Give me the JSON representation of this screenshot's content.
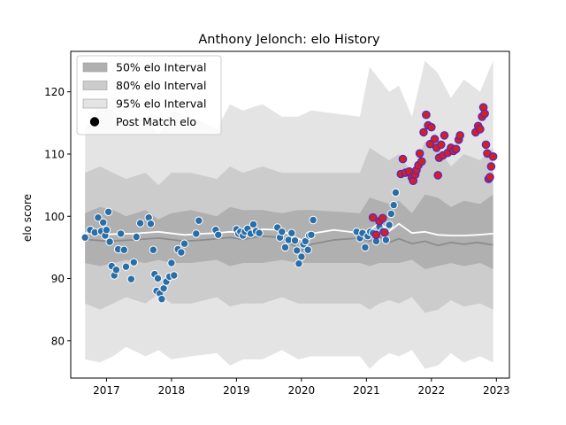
{
  "chart_data": {
    "type": "scatter",
    "title": "Anthony Jelonch: elo History",
    "xlabel": "",
    "ylabel": "elo score",
    "xlim": [
      2016.45,
      2023.2
    ],
    "ylim": [
      74,
      126.5
    ],
    "x_ticks": [
      2017,
      2018,
      2019,
      2020,
      2021,
      2022,
      2023
    ],
    "x_tick_labels": [
      "2017",
      "2018",
      "2019",
      "2020",
      "2021",
      "2022",
      "2023"
    ],
    "y_ticks": [
      80,
      90,
      100,
      110,
      120
    ],
    "y_tick_labels": [
      "80",
      "90",
      "100",
      "110",
      "120"
    ],
    "legend_placement": "top-left",
    "legend": [
      {
        "label": "50% elo Interval",
        "kind": "band",
        "color": "#b0b0b0"
      },
      {
        "label": "80% elo Interval",
        "kind": "band",
        "color": "#cccccc"
      },
      {
        "label": "95% elo Interval",
        "kind": "band",
        "color": "#e4e4e4"
      },
      {
        "label": "Post Match elo",
        "kind": "marker",
        "color": "#000000"
      }
    ],
    "colors": {
      "band95": "#e4e4e4",
      "band80": "#cccccc",
      "band50": "#b0b0b0",
      "median_line": "#8c8c8c",
      "mean_line": "#ffffff",
      "point_blue": "#2a6ea8",
      "point_red": "#d62020",
      "point_red_edge": "#4b28c8"
    },
    "bands": {
      "x": [
        2016.67,
        2016.9,
        2017.1,
        2017.3,
        2017.6,
        2017.8,
        2018.0,
        2018.3,
        2018.7,
        2018.9,
        2019.1,
        2019.4,
        2019.7,
        2019.95,
        2020.15,
        2020.9,
        2021.05,
        2021.2,
        2021.35,
        2021.5,
        2021.7,
        2021.9,
        2022.1,
        2022.3,
        2022.5,
        2022.75,
        2022.95
      ],
      "p95_hi": [
        114,
        118,
        117,
        115,
        116,
        113,
        117,
        116,
        114,
        118,
        117,
        118,
        116,
        116,
        117,
        116,
        124,
        122,
        120,
        121,
        116,
        125,
        123,
        119,
        122,
        120,
        125
      ],
      "p80_hi": [
        107,
        108,
        107,
        106,
        107,
        105,
        107,
        107,
        106,
        108,
        107,
        108,
        107,
        107,
        107,
        107,
        111,
        110,
        109,
        110,
        107,
        112,
        111,
        108,
        110,
        109,
        111
      ],
      "p50_hi": [
        100.5,
        101.5,
        101,
        100,
        101,
        99.5,
        100.5,
        101,
        100,
        101.5,
        101,
        101,
        100.5,
        101,
        101,
        100.5,
        103,
        102.5,
        102,
        102.5,
        100.5,
        103.5,
        103,
        101.5,
        102.5,
        102,
        103.5
      ],
      "p50_lo": [
        92.5,
        92,
        92.5,
        93,
        92.5,
        93,
        92.5,
        92.5,
        93,
        92,
        92.5,
        92.5,
        93,
        92.5,
        92.5,
        92.5,
        92,
        92.5,
        92.5,
        92.5,
        93,
        91.5,
        92,
        92.5,
        92,
        92.5,
        91.5
      ],
      "p80_lo": [
        86,
        85,
        86,
        87,
        86,
        87.5,
        86,
        86,
        87,
        85.5,
        86,
        86,
        87,
        86,
        86,
        86,
        85,
        86,
        86.5,
        86,
        87,
        84.5,
        85,
        86.5,
        85.5,
        86,
        85
      ],
      "p95_lo": [
        77,
        76.5,
        77.5,
        79,
        77.5,
        78.5,
        77,
        77.5,
        78,
        76,
        77,
        77,
        78.5,
        77,
        77.5,
        77.5,
        75.5,
        77,
        78,
        77.5,
        78.5,
        75.5,
        76,
        78,
        76.5,
        77.5,
        76.5
      ]
    },
    "median_line": {
      "x": [
        2016.67,
        2017.0,
        2017.4,
        2017.8,
        2018.2,
        2018.5,
        2018.7,
        2018.9,
        2019.1,
        2019.4,
        2019.7,
        2019.85,
        2020.0,
        2020.15,
        2020.5,
        2020.9,
        2021.05,
        2021.2,
        2021.35,
        2021.5,
        2021.7,
        2021.9,
        2022.1,
        2022.3,
        2022.5,
        2022.7,
        2022.95
      ],
      "y": [
        96.3,
        96.0,
        96.2,
        96.5,
        96.0,
        96.2,
        96.4,
        96.6,
        96.3,
        96.8,
        96.6,
        95.5,
        94.5,
        95.5,
        96.2,
        96.5,
        96.0,
        96.7,
        95.8,
        96.4,
        95.6,
        96.0,
        95.3,
        95.8,
        95.5,
        95.8,
        95.4
      ]
    },
    "mean_line": {
      "x": [
        2016.67,
        2017.0,
        2017.4,
        2017.8,
        2018.2,
        2018.5,
        2018.7,
        2018.9,
        2019.1,
        2019.4,
        2019.7,
        2019.85,
        2020.0,
        2020.15,
        2020.5,
        2020.9,
        2021.05,
        2021.2,
        2021.35,
        2021.5,
        2021.7,
        2021.9,
        2022.1,
        2022.3,
        2022.5,
        2022.7,
        2022.95
      ],
      "y": [
        97.3,
        97.1,
        97.2,
        97.5,
        97.0,
        97.2,
        97.3,
        97.5,
        97.4,
        97.9,
        97.8,
        96.8,
        96.2,
        97.2,
        97.8,
        97.3,
        97.7,
        99.0,
        97.6,
        98.8,
        97.3,
        97.5,
        97.0,
        96.9,
        96.9,
        97.0,
        97.2
      ]
    },
    "series": [
      {
        "name": "Post Match elo",
        "points_blue": [
          [
            2016.67,
            96.6
          ],
          [
            2016.75,
            97.8
          ],
          [
            2016.82,
            97.4
          ],
          [
            2016.87,
            99.8
          ],
          [
            2016.92,
            97.6
          ],
          [
            2016.95,
            99.0
          ],
          [
            2016.98,
            96.9
          ],
          [
            2017.0,
            97.8
          ],
          [
            2017.03,
            100.7
          ],
          [
            2017.05,
            95.9
          ],
          [
            2017.08,
            92.0
          ],
          [
            2017.12,
            90.5
          ],
          [
            2017.15,
            91.4
          ],
          [
            2017.18,
            94.7
          ],
          [
            2017.22,
            97.2
          ],
          [
            2017.27,
            94.6
          ],
          [
            2017.3,
            91.9
          ],
          [
            2017.38,
            89.9
          ],
          [
            2017.42,
            92.6
          ],
          [
            2017.46,
            96.7
          ],
          [
            2017.52,
            98.9
          ],
          [
            2017.65,
            99.8
          ],
          [
            2017.68,
            98.8
          ],
          [
            2017.72,
            94.6
          ],
          [
            2017.74,
            90.7
          ],
          [
            2017.77,
            88.0
          ],
          [
            2017.79,
            90.0
          ],
          [
            2017.82,
            87.6
          ],
          [
            2017.85,
            86.7
          ],
          [
            2017.88,
            88.4
          ],
          [
            2017.92,
            89.5
          ],
          [
            2017.97,
            90.3
          ],
          [
            2018.0,
            92.5
          ],
          [
            2018.04,
            90.5
          ],
          [
            2018.1,
            94.7
          ],
          [
            2018.15,
            94.2
          ],
          [
            2018.2,
            95.6
          ],
          [
            2018.38,
            97.2
          ],
          [
            2018.42,
            99.3
          ],
          [
            2018.68,
            97.8
          ],
          [
            2018.72,
            97.0
          ],
          [
            2019.0,
            97.9
          ],
          [
            2019.03,
            97.2
          ],
          [
            2019.06,
            97.5
          ],
          [
            2019.1,
            96.9
          ],
          [
            2019.13,
            97.5
          ],
          [
            2019.17,
            98.0
          ],
          [
            2019.22,
            97.2
          ],
          [
            2019.26,
            98.7
          ],
          [
            2019.3,
            97.6
          ],
          [
            2019.35,
            97.3
          ],
          [
            2019.63,
            98.2
          ],
          [
            2019.67,
            96.6
          ],
          [
            2019.7,
            97.5
          ],
          [
            2019.75,
            95.0
          ],
          [
            2019.8,
            96.2
          ],
          [
            2019.85,
            97.3
          ],
          [
            2019.9,
            96.1
          ],
          [
            2019.93,
            94.5
          ],
          [
            2019.96,
            92.4
          ],
          [
            2020.0,
            93.5
          ],
          [
            2020.03,
            95.5
          ],
          [
            2020.06,
            96.0
          ],
          [
            2020.1,
            94.6
          ],
          [
            2020.12,
            96.9
          ],
          [
            2020.15,
            97.0
          ],
          [
            2020.18,
            99.4
          ],
          [
            2020.85,
            97.5
          ],
          [
            2020.9,
            96.5
          ],
          [
            2020.94,
            97.3
          ],
          [
            2020.98,
            95.0
          ],
          [
            2021.02,
            96.8
          ],
          [
            2021.06,
            97.5
          ],
          [
            2021.1,
            97.3
          ],
          [
            2021.15,
            96.0
          ],
          [
            2021.2,
            98.3
          ],
          [
            2021.25,
            97.6
          ],
          [
            2021.3,
            96.2
          ],
          [
            2021.35,
            98.6
          ],
          [
            2021.38,
            100.4
          ],
          [
            2021.42,
            101.8
          ],
          [
            2021.45,
            103.8
          ]
        ],
        "points_red": [
          [
            2021.1,
            99.8
          ],
          [
            2021.15,
            97.0
          ],
          [
            2021.2,
            99.2
          ],
          [
            2021.25,
            99.7
          ],
          [
            2021.28,
            97.4
          ],
          [
            2021.53,
            106.8
          ],
          [
            2021.56,
            109.2
          ],
          [
            2021.6,
            107.0
          ],
          [
            2021.66,
            107.2
          ],
          [
            2021.7,
            106.2
          ],
          [
            2021.72,
            105.7
          ],
          [
            2021.75,
            106.7
          ],
          [
            2021.77,
            107.4
          ],
          [
            2021.8,
            108.2
          ],
          [
            2021.82,
            110.1
          ],
          [
            2021.85,
            108.8
          ],
          [
            2021.88,
            113.5
          ],
          [
            2021.92,
            116.3
          ],
          [
            2021.95,
            114.6
          ],
          [
            2021.98,
            111.6
          ],
          [
            2022.0,
            114.3
          ],
          [
            2022.05,
            112.4
          ],
          [
            2022.08,
            111.0
          ],
          [
            2022.1,
            106.6
          ],
          [
            2022.12,
            109.4
          ],
          [
            2022.15,
            111.5
          ],
          [
            2022.18,
            109.8
          ],
          [
            2022.2,
            113.0
          ],
          [
            2022.25,
            110.2
          ],
          [
            2022.3,
            111.0
          ],
          [
            2022.34,
            110.5
          ],
          [
            2022.38,
            110.8
          ],
          [
            2022.42,
            112.3
          ],
          [
            2022.44,
            113.0
          ],
          [
            2022.68,
            113.5
          ],
          [
            2022.72,
            114.5
          ],
          [
            2022.75,
            114.0
          ],
          [
            2022.78,
            116.0
          ],
          [
            2022.8,
            117.5
          ],
          [
            2022.82,
            116.5
          ],
          [
            2022.84,
            111.5
          ],
          [
            2022.86,
            110.1
          ],
          [
            2022.88,
            106.0
          ],
          [
            2022.9,
            106.3
          ],
          [
            2022.92,
            108.0
          ],
          [
            2022.95,
            109.6
          ]
        ]
      }
    ]
  }
}
